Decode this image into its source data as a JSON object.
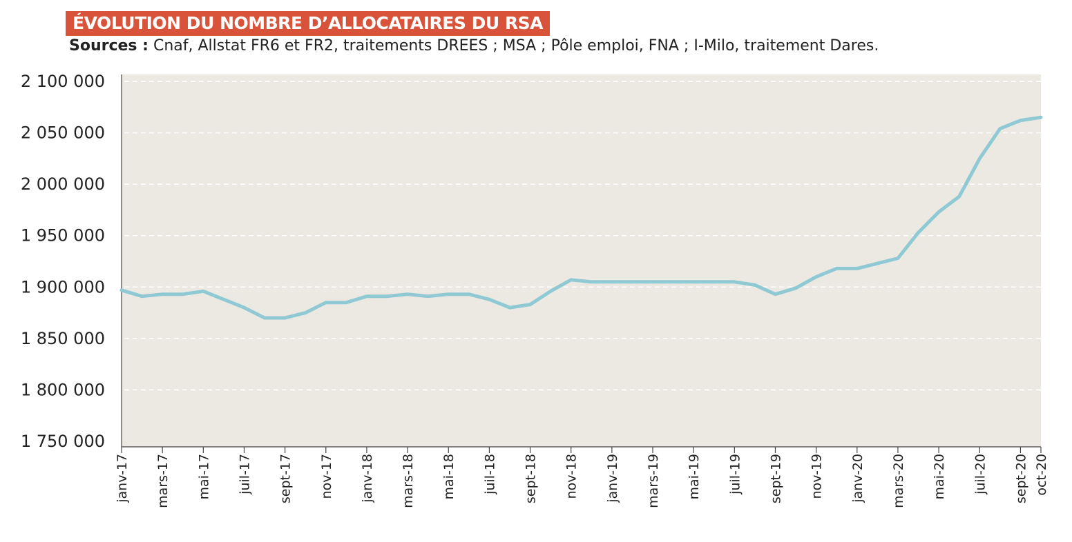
{
  "title": "ÉVOLUTION DU NOMBRE D’ALLOCATAIRES DU RSA",
  "sources": {
    "label": "Sources :",
    "text": "Cnaf, Allstat FR6 et FR2, traitements DREES ; MSA ; Pôle emploi, FNA ; I-Milo, traitement Dares."
  },
  "colors": {
    "title_bg": "#d9533a",
    "plot_bg": "#ece9e3",
    "line": "#8ec9d4",
    "grid": "#ffffff"
  },
  "chart_data": {
    "type": "line",
    "title": "ÉVOLUTION DU NOMBRE D’ALLOCATAIRES DU RSA",
    "xlabel": "",
    "ylabel": "",
    "ylim": [
      1750000,
      2100000
    ],
    "yticks": [
      1750000,
      1800000,
      1850000,
      1900000,
      1950000,
      2000000,
      2050000,
      2100000
    ],
    "ytick_labels": [
      "1 750 000",
      "1 800 000",
      "1 850 000",
      "1 900 000",
      "1 950 000",
      "2 000 000",
      "2 050 000",
      "2 100 000"
    ],
    "grid": true,
    "x_tick_labels": [
      "janv-17",
      "mars-17",
      "mai-17",
      "juil-17",
      "sept-17",
      "nov-17",
      "janv-18",
      "mars-18",
      "mai-18",
      "juil-18",
      "sept-18",
      "nov-18",
      "janv-19",
      "mars-19",
      "mai-19",
      "juil-19",
      "sept-19",
      "nov-19",
      "janv-20",
      "mars-20",
      "mai-20",
      "juil-20",
      "sept-20",
      "oct-20"
    ],
    "x": [
      "janv-17",
      "févr-17",
      "mars-17",
      "avr-17",
      "mai-17",
      "juin-17",
      "juil-17",
      "août-17",
      "sept-17",
      "oct-17",
      "nov-17",
      "déc-17",
      "janv-18",
      "févr-18",
      "mars-18",
      "avr-18",
      "mai-18",
      "juin-18",
      "juil-18",
      "août-18",
      "sept-18",
      "oct-18",
      "nov-18",
      "déc-18",
      "janv-19",
      "févr-19",
      "mars-19",
      "avr-19",
      "mai-19",
      "juin-19",
      "juil-19",
      "août-19",
      "sept-19",
      "oct-19",
      "nov-19",
      "déc-19",
      "janv-20",
      "févr-20",
      "mars-20",
      "avr-20",
      "mai-20",
      "juin-20",
      "juil-20",
      "août-20",
      "sept-20",
      "oct-20"
    ],
    "series": [
      {
        "values": [
          1897000,
          1891000,
          1893000,
          1893000,
          1896000,
          1888000,
          1880000,
          1870000,
          1870000,
          1875000,
          1885000,
          1885000,
          1891000,
          1891000,
          1893000,
          1891000,
          1893000,
          1893000,
          1888000,
          1880000,
          1883000,
          1896000,
          1907000,
          1905000,
          1905000,
          1905000,
          1905000,
          1905000,
          1905000,
          1905000,
          1905000,
          1902000,
          1893000,
          1899000,
          1910000,
          1918000,
          1918000,
          1923000,
          1928000,
          1953000,
          1973000,
          1988000,
          2025000,
          2054000,
          2062000,
          2065000
        ]
      }
    ]
  }
}
